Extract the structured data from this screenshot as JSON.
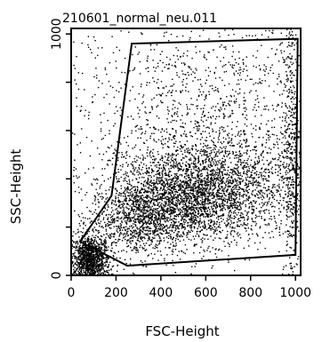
{
  "chart_data": {
    "type": "scatter",
    "title": "210601_normal_neu.011",
    "xlabel": "FSC-Height",
    "ylabel": "SSC-Height",
    "xlim": [
      0,
      1023
    ],
    "ylim": [
      0,
      1023
    ],
    "xticks": [
      0,
      200,
      400,
      600,
      800,
      1000
    ],
    "xtick_labels": [
      "0",
      "200",
      "400",
      "600",
      "800",
      "1000"
    ],
    "yticks": [
      0,
      200,
      400,
      600,
      800,
      1000
    ],
    "ytick_labels": [
      "0",
      "",
      "",
      "",
      "",
      "1000"
    ],
    "grid": false,
    "point_color": "#000000",
    "gate": {
      "vertices": [
        [
          250,
          40
        ],
        [
          1000,
          85
        ],
        [
          1010,
          980
        ],
        [
          270,
          960
        ],
        [
          180,
          330
        ],
        [
          40,
          140
        ]
      ],
      "color": "#000000"
    },
    "clusters": [
      {
        "center": [
          80,
          60
        ],
        "spread": [
          45,
          55
        ],
        "count": 1300
      },
      {
        "center": [
          300,
          230
        ],
        "spread": [
          110,
          75
        ],
        "count": 900
      },
      {
        "center": [
          520,
          330
        ],
        "spread": [
          170,
          95
        ],
        "count": 2400
      },
      {
        "center": [
          760,
          410
        ],
        "spread": [
          180,
          120
        ],
        "count": 900
      },
      {
        "center": [
          540,
          600
        ],
        "spread": [
          300,
          230
        ],
        "count": 1100
      },
      {
        "center": [
          600,
          850
        ],
        "spread": [
          320,
          130
        ],
        "count": 300
      },
      {
        "center": [
          980,
          500
        ],
        "spread": [
          20,
          300
        ],
        "count": 450
      }
    ]
  }
}
